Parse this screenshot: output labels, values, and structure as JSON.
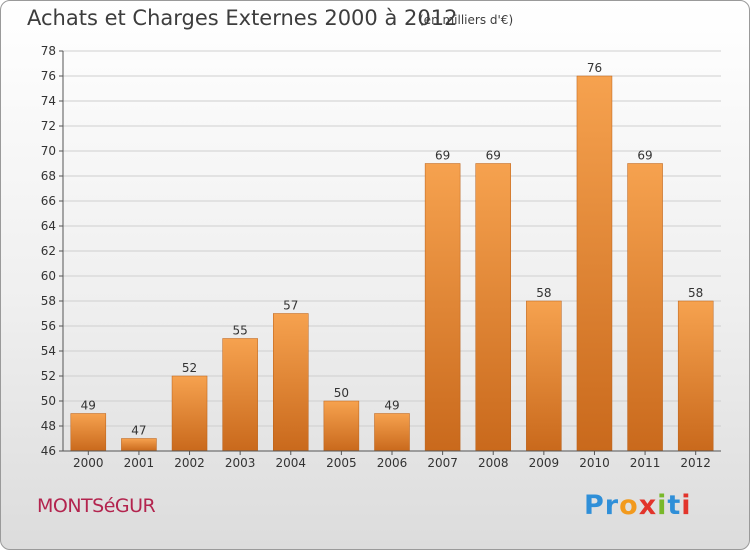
{
  "header": {
    "title": "Achats et Charges Externes 2000 à 2012",
    "subtitle": "(en milliers d'€)"
  },
  "footer": {
    "place": "MONTSéGUR",
    "logo_text": "Proxiti",
    "logo_colors": [
      "#2f8fd8",
      "#2f8fd8",
      "#f29a1d",
      "#e2342b",
      "#79b82a",
      "#2f8fd8",
      "#e2342b"
    ]
  },
  "colors": {
    "bar_top": "#f6a24f",
    "bar_bottom": "#c9691c",
    "grid": "#cfcfcf",
    "axis": "#555555"
  },
  "chart_data": {
    "type": "bar",
    "title": "Achats et Charges Externes 2000 à 2012",
    "xlabel": "",
    "ylabel": "",
    "categories": [
      "2000",
      "2001",
      "2002",
      "2003",
      "2004",
      "2005",
      "2006",
      "2007",
      "2008",
      "2009",
      "2010",
      "2011",
      "2012"
    ],
    "values": [
      49,
      47,
      52,
      55,
      57,
      50,
      49,
      69,
      69,
      58,
      76,
      69,
      58
    ],
    "ylim": [
      46,
      78
    ],
    "yticks": [
      46,
      48,
      50,
      52,
      54,
      56,
      58,
      60,
      62,
      64,
      66,
      68,
      70,
      72,
      74,
      76,
      78
    ],
    "grid": true
  }
}
